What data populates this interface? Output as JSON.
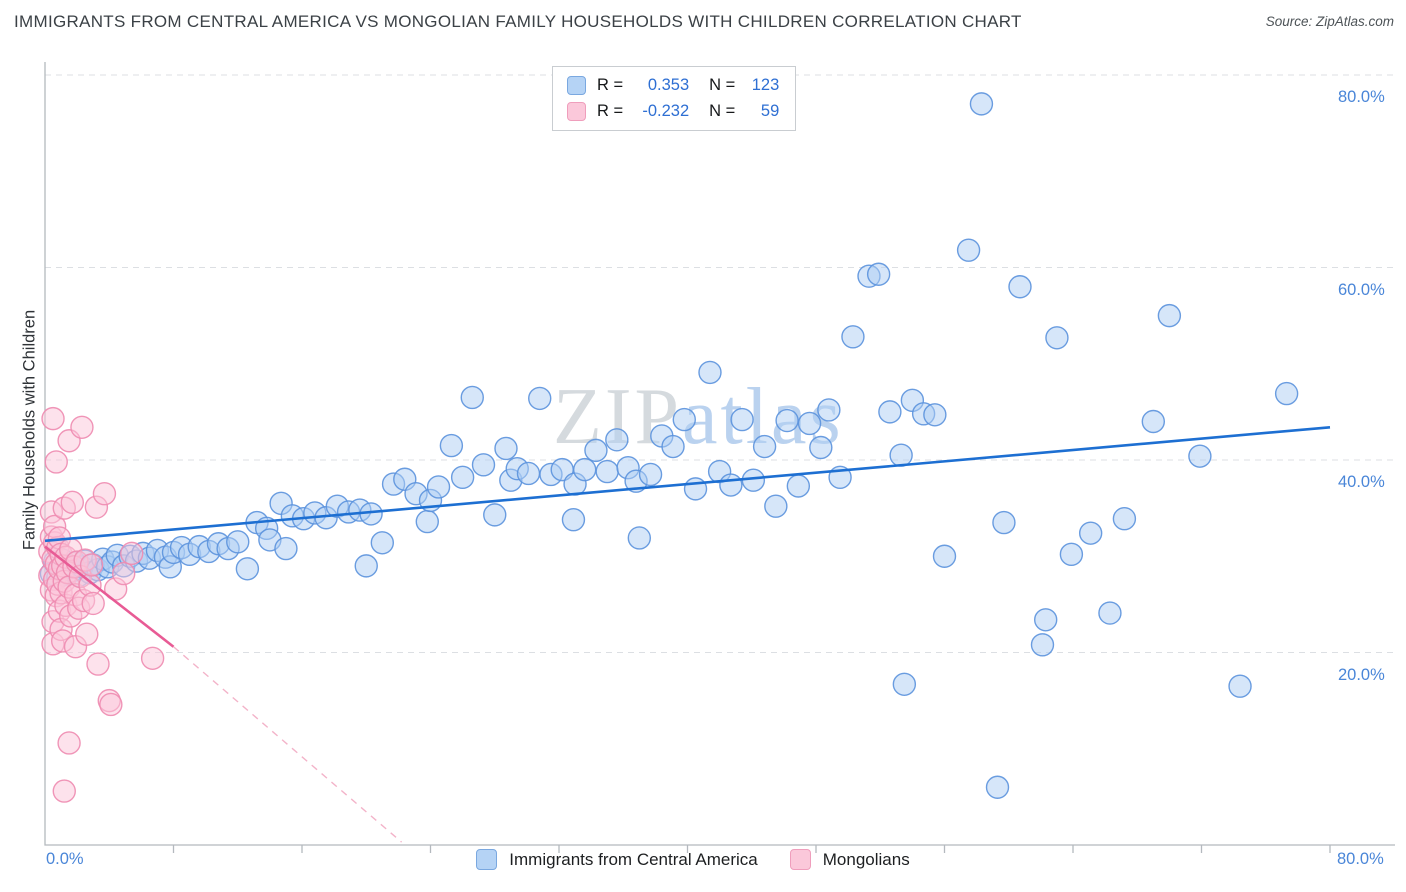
{
  "header": {
    "title": "IMMIGRANTS FROM CENTRAL AMERICA VS MONGOLIAN FAMILY HOUSEHOLDS WITH CHILDREN CORRELATION CHART",
    "source": "Source: ZipAtlas.com"
  },
  "stats_legend": {
    "rows": [
      {
        "r_label": "R =",
        "r_value": "0.353",
        "n_label": "N =",
        "n_value": "123"
      },
      {
        "r_label": "R =",
        "r_value": "-0.232",
        "n_label": "N =",
        "n_value": "59"
      }
    ]
  },
  "axes": {
    "y_label": "Family Households with Children",
    "y_ticks": [
      "80.0%",
      "60.0%",
      "40.0%",
      "20.0%"
    ],
    "x_tick_left": "0.0%",
    "x_tick_right": "80.0%"
  },
  "watermark": {
    "zip": "ZIP",
    "atlas": "atlas"
  },
  "bottom_legend": {
    "items": [
      {
        "label": "Immigrants from Central America"
      },
      {
        "label": "Mongolians"
      }
    ]
  },
  "colors": {
    "accent_blue": "#4a86d8",
    "grid": "#dcdfe3",
    "axis": "#b4b9be",
    "title": "#3b4146",
    "watermark_zip": "#d5dade",
    "watermark_atlas": "#bad2ef"
  },
  "chart_data": {
    "type": "scatter",
    "title": "IMMIGRANTS FROM CENTRAL AMERICA VS MONGOLIAN FAMILY HOUSEHOLDS WITH CHILDREN CORRELATION CHART",
    "xlabel": "",
    "ylabel": "Family Households with Children",
    "x_range": [
      0,
      80
    ],
    "y_range": [
      0,
      83
    ],
    "x_unit": "%",
    "y_unit": "%",
    "grid": "horizontal dashed",
    "y_gridlines": [
      20,
      40,
      60,
      80
    ],
    "legend_position": "bottom",
    "series": [
      {
        "id": "central-america",
        "name": "Immigrants from Central America",
        "R": 0.353,
        "N": 123,
        "fill": "#aecdf3",
        "stroke": "#5b92dd",
        "points": [
          [
            0.4,
            28.2
          ],
          [
            0.6,
            29.4
          ],
          [
            0.8,
            27.8
          ],
          [
            1.0,
            28.8
          ],
          [
            1.1,
            29.6
          ],
          [
            1.3,
            28.1
          ],
          [
            1.5,
            29.0
          ],
          [
            1.7,
            28.5
          ],
          [
            1.9,
            29.3
          ],
          [
            2.1,
            28.0
          ],
          [
            2.3,
            28.9
          ],
          [
            2.5,
            29.5
          ],
          [
            2.8,
            28.3
          ],
          [
            3.0,
            29.1
          ],
          [
            3.3,
            28.6
          ],
          [
            3.6,
            29.7
          ],
          [
            3.9,
            28.9
          ],
          [
            4.2,
            29.4
          ],
          [
            4.5,
            30.1
          ],
          [
            4.9,
            29.0
          ],
          [
            5.3,
            30.0
          ],
          [
            5.7,
            29.5
          ],
          [
            6.1,
            30.3
          ],
          [
            6.5,
            29.8
          ],
          [
            7.0,
            30.6
          ],
          [
            7.5,
            29.9
          ],
          [
            7.8,
            28.9
          ],
          [
            8.0,
            30.4
          ],
          [
            8.5,
            30.9
          ],
          [
            9.0,
            30.2
          ],
          [
            9.6,
            31.0
          ],
          [
            10.2,
            30.5
          ],
          [
            10.8,
            31.3
          ],
          [
            11.4,
            30.8
          ],
          [
            12.0,
            31.5
          ],
          [
            12.6,
            28.7
          ],
          [
            13.2,
            33.5
          ],
          [
            13.8,
            32.9
          ],
          [
            14.0,
            31.7
          ],
          [
            14.7,
            35.5
          ],
          [
            15.0,
            30.8
          ],
          [
            15.4,
            34.2
          ],
          [
            16.1,
            33.9
          ],
          [
            16.8,
            34.5
          ],
          [
            17.5,
            34.0
          ],
          [
            18.2,
            35.2
          ],
          [
            18.9,
            34.6
          ],
          [
            19.6,
            34.8
          ],
          [
            20.0,
            29.0
          ],
          [
            20.3,
            34.4
          ],
          [
            21.0,
            31.4
          ],
          [
            21.7,
            37.5
          ],
          [
            22.4,
            38.0
          ],
          [
            23.1,
            36.5
          ],
          [
            23.8,
            33.6
          ],
          [
            24.0,
            35.8
          ],
          [
            24.5,
            37.2
          ],
          [
            25.3,
            41.5
          ],
          [
            26.0,
            38.2
          ],
          [
            26.6,
            46.5
          ],
          [
            27.3,
            39.5
          ],
          [
            28.0,
            34.3
          ],
          [
            28.7,
            41.2
          ],
          [
            29.0,
            37.9
          ],
          [
            29.4,
            39.1
          ],
          [
            30.1,
            38.6
          ],
          [
            30.8,
            46.4
          ],
          [
            31.5,
            38.5
          ],
          [
            32.2,
            39.0
          ],
          [
            32.9,
            33.8
          ],
          [
            33.0,
            37.5
          ],
          [
            33.6,
            39.0
          ],
          [
            34.3,
            41.0
          ],
          [
            35.0,
            38.8
          ],
          [
            35.6,
            42.1
          ],
          [
            36.3,
            39.2
          ],
          [
            36.8,
            37.8
          ],
          [
            37.0,
            31.9
          ],
          [
            37.7,
            38.5
          ],
          [
            38.4,
            42.5
          ],
          [
            39.1,
            41.4
          ],
          [
            39.8,
            44.2
          ],
          [
            40.5,
            37.0
          ],
          [
            41.4,
            49.1
          ],
          [
            42.0,
            38.8
          ],
          [
            42.7,
            37.4
          ],
          [
            43.4,
            44.2
          ],
          [
            44.1,
            37.9
          ],
          [
            44.8,
            41.4
          ],
          [
            45.5,
            35.2
          ],
          [
            46.2,
            44.1
          ],
          [
            46.9,
            37.3
          ],
          [
            47.6,
            43.8
          ],
          [
            48.3,
            41.3
          ],
          [
            48.8,
            45.2
          ],
          [
            49.5,
            38.2
          ],
          [
            50.3,
            52.8
          ],
          [
            51.3,
            59.1
          ],
          [
            51.9,
            59.3
          ],
          [
            52.6,
            45.0
          ],
          [
            53.3,
            40.5
          ],
          [
            54.0,
            46.2
          ],
          [
            54.7,
            44.8
          ],
          [
            55.4,
            44.7
          ],
          [
            53.5,
            16.7
          ],
          [
            56.0,
            30.0
          ],
          [
            57.5,
            61.8
          ],
          [
            58.3,
            77.0
          ],
          [
            59.3,
            6.0
          ],
          [
            59.7,
            33.5
          ],
          [
            60.7,
            58.0
          ],
          [
            62.1,
            20.8
          ],
          [
            62.3,
            23.4
          ],
          [
            63.0,
            52.7
          ],
          [
            63.9,
            30.2
          ],
          [
            65.1,
            32.4
          ],
          [
            66.3,
            24.1
          ],
          [
            67.2,
            33.9
          ],
          [
            69.0,
            44.0
          ],
          [
            70.0,
            55.0
          ],
          [
            71.9,
            40.4
          ],
          [
            74.4,
            16.5
          ],
          [
            77.3,
            46.9
          ]
        ]
      },
      {
        "id": "mongolians",
        "name": "Mongolians",
        "R": -0.232,
        "N": 59,
        "fill": "#fbc6d9",
        "stroke": "#ee8bb0",
        "points": [
          [
            0.3,
            30.5
          ],
          [
            0.3,
            28.0
          ],
          [
            0.4,
            32.0
          ],
          [
            0.4,
            26.5
          ],
          [
            0.4,
            34.6
          ],
          [
            0.5,
            44.3
          ],
          [
            0.5,
            29.7
          ],
          [
            0.5,
            23.2
          ],
          [
            0.5,
            20.9
          ],
          [
            0.6,
            31.4
          ],
          [
            0.6,
            27.6
          ],
          [
            0.6,
            33.1
          ],
          [
            0.7,
            39.8
          ],
          [
            0.7,
            29.2
          ],
          [
            0.7,
            25.9
          ],
          [
            0.8,
            30.9
          ],
          [
            0.8,
            27.1
          ],
          [
            0.9,
            28.7
          ],
          [
            0.9,
            24.3
          ],
          [
            0.9,
            31.9
          ],
          [
            1.0,
            30.2
          ],
          [
            1.0,
            26.2
          ],
          [
            1.0,
            22.4
          ],
          [
            1.1,
            29.0
          ],
          [
            1.1,
            21.2
          ],
          [
            1.2,
            35.0
          ],
          [
            1.2,
            27.4
          ],
          [
            1.2,
            5.6
          ],
          [
            1.3,
            29.9
          ],
          [
            1.3,
            24.9
          ],
          [
            1.4,
            28.3
          ],
          [
            1.5,
            42.0
          ],
          [
            1.5,
            26.8
          ],
          [
            1.5,
            10.6
          ],
          [
            1.6,
            30.7
          ],
          [
            1.6,
            23.8
          ],
          [
            1.7,
            35.6
          ],
          [
            1.8,
            28.9
          ],
          [
            1.9,
            26.0
          ],
          [
            1.9,
            20.6
          ],
          [
            2.0,
            29.4
          ],
          [
            2.1,
            24.6
          ],
          [
            2.2,
            27.9
          ],
          [
            2.3,
            43.4
          ],
          [
            2.4,
            25.4
          ],
          [
            2.5,
            29.6
          ],
          [
            2.6,
            21.9
          ],
          [
            2.8,
            27.0
          ],
          [
            2.9,
            29.1
          ],
          [
            3.0,
            25.1
          ],
          [
            3.2,
            35.1
          ],
          [
            3.3,
            18.8
          ],
          [
            3.7,
            36.5
          ],
          [
            4.0,
            15.0
          ],
          [
            4.1,
            14.6
          ],
          [
            4.4,
            26.6
          ],
          [
            4.9,
            28.2
          ],
          [
            5.4,
            30.3
          ],
          [
            6.7,
            19.4
          ]
        ]
      }
    ],
    "trend_lines": [
      {
        "name": "central-america-trend",
        "color": "#1d6fd2",
        "style": "solid",
        "width": 2.6,
        "x1": 0,
        "y1": 31.6,
        "x2": 80,
        "y2": 43.4
      },
      {
        "name": "mongolians-trend",
        "color": "#e85b95",
        "style": "solid",
        "width": 2.6,
        "x1": 0,
        "y1": 31.0,
        "x2": 8,
        "y2": 20.6
      },
      {
        "name": "mongolians-trend-extrapolated",
        "color": "#f3b3c9",
        "style": "dashed",
        "width": 1.4,
        "x1": 8,
        "y1": 20.6,
        "x2": 22.2,
        "y2": 0.3
      }
    ]
  }
}
